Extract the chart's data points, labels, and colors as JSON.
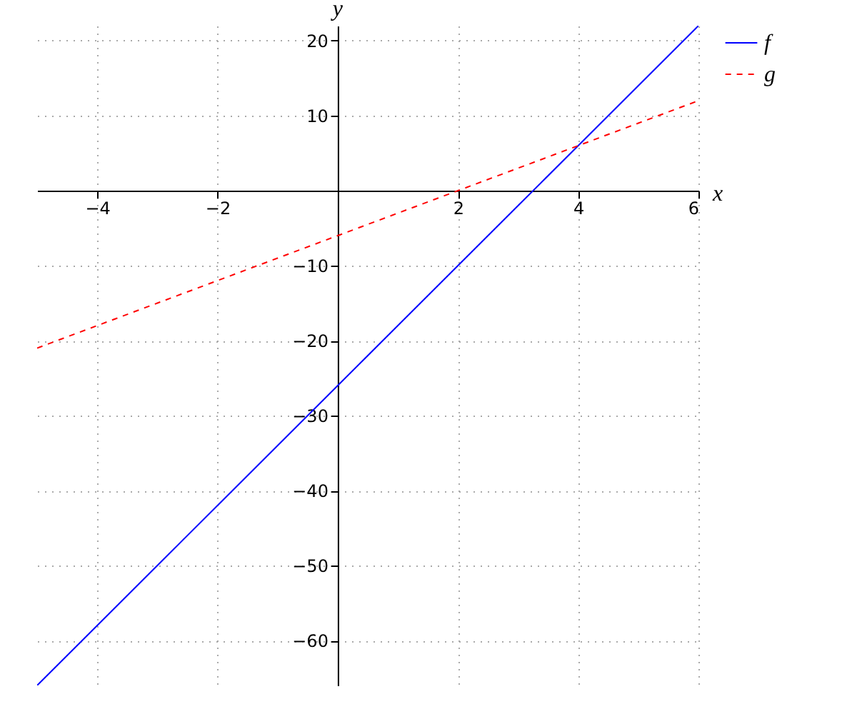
{
  "chart_data": {
    "type": "line",
    "xlabel": "x",
    "ylabel": "y",
    "x": [
      -5,
      -4,
      -3,
      -2,
      -1,
      0,
      1,
      2,
      3,
      4,
      5,
      6
    ],
    "series": [
      {
        "name": "f",
        "color": "#0000ff",
        "line_style": "solid",
        "values": [
          -66,
          -58,
          -50,
          -42,
          -34,
          -26,
          -18,
          -10,
          -2,
          6,
          14,
          22
        ]
      },
      {
        "name": "g",
        "color": "#ff0000",
        "line_style": "dashed",
        "values": [
          -21,
          -18,
          -15,
          -12,
          -9,
          -6,
          -3,
          0,
          3,
          6,
          9,
          12
        ]
      }
    ],
    "xlim": [
      -5,
      6
    ],
    "ylim": [
      -66,
      22
    ],
    "xticks": [
      -4,
      -2,
      2,
      4,
      6
    ],
    "yticks": [
      -60,
      -50,
      -40,
      -30,
      -20,
      -10,
      10,
      20
    ],
    "grid": true,
    "legend": "top right",
    "marker": "none"
  }
}
